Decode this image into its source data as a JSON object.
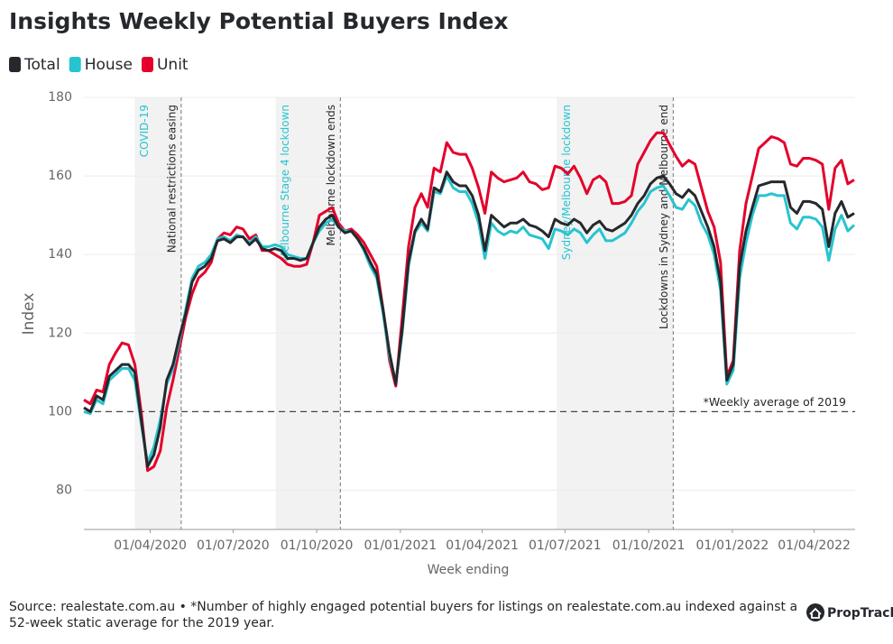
{
  "chart_data": {
    "type": "line",
    "title": "Insights Weekly Potential Buyers Index",
    "y_label": "Index",
    "x_label": "Week ending",
    "source": [
      "Source: realestate.com.au • *Number of highly engaged potential buyers for listings on realestate.com.au indexed against a",
      "52-week static average for the 2019 year."
    ],
    "brand": "PropTrack",
    "grid": true,
    "xlim": [
      "2020-01-19",
      "2022-05-16"
    ],
    "ylim": [
      70,
      180
    ],
    "yticks": [
      80,
      100,
      120,
      140,
      160,
      180
    ],
    "xticks": [
      {
        "value": "2020-04-01",
        "label": "01/04/2020"
      },
      {
        "value": "2020-07-01",
        "label": "01/07/2020"
      },
      {
        "value": "2020-10-01",
        "label": "01/10/2020"
      },
      {
        "value": "2021-01-01",
        "label": "01/01/2021"
      },
      {
        "value": "2021-04-01",
        "label": "01/04/2021"
      },
      {
        "value": "2021-07-01",
        "label": "01/07/2021"
      },
      {
        "value": "2021-10-01",
        "label": "01/10/2021"
      },
      {
        "value": "2022-01-01",
        "label": "01/01/2022"
      },
      {
        "value": "2022-04-01",
        "label": "01/04/2022"
      }
    ],
    "reference_line": {
      "value": 100,
      "label": "*Weekly average of 2019"
    },
    "shaded_periods": [
      {
        "start": "2020-03-15",
        "end": "2020-05-05",
        "label": "COVID-19"
      },
      {
        "start": "2020-08-17",
        "end": "2020-10-27",
        "label": "Melbourne Stage 4 lockdown"
      },
      {
        "start": "2021-06-22",
        "end": "2021-10-28",
        "label": "Sydney/Melbourne lockdown"
      }
    ],
    "markers": [
      {
        "x": "2020-05-05",
        "label": "National restrictions easing"
      },
      {
        "x": "2020-10-27",
        "label": "Melbourne lockdown ends"
      },
      {
        "x": "2021-10-28",
        "label": "Lockdowns in Sydney and Melbourne end"
      }
    ],
    "x": [
      "2020-01-19",
      "2020-01-26",
      "2020-02-02",
      "2020-02-09",
      "2020-02-16",
      "2020-02-23",
      "2020-03-01",
      "2020-03-08",
      "2020-03-15",
      "2020-03-22",
      "2020-03-29",
      "2020-04-05",
      "2020-04-12",
      "2020-04-19",
      "2020-04-26",
      "2020-05-03",
      "2020-05-10",
      "2020-05-17",
      "2020-05-24",
      "2020-05-31",
      "2020-06-07",
      "2020-06-14",
      "2020-06-21",
      "2020-06-28",
      "2020-07-05",
      "2020-07-12",
      "2020-07-19",
      "2020-07-26",
      "2020-08-02",
      "2020-08-09",
      "2020-08-16",
      "2020-08-23",
      "2020-08-30",
      "2020-09-06",
      "2020-09-13",
      "2020-09-20",
      "2020-09-27",
      "2020-10-04",
      "2020-10-11",
      "2020-10-18",
      "2020-10-25",
      "2020-11-01",
      "2020-11-08",
      "2020-11-15",
      "2020-11-22",
      "2020-11-29",
      "2020-12-06",
      "2020-12-13",
      "2020-12-20",
      "2020-12-27",
      "2021-01-03",
      "2021-01-10",
      "2021-01-17",
      "2021-01-24",
      "2021-01-31",
      "2021-02-07",
      "2021-02-14",
      "2021-02-21",
      "2021-02-28",
      "2021-03-07",
      "2021-03-14",
      "2021-03-21",
      "2021-03-28",
      "2021-04-04",
      "2021-04-11",
      "2021-04-18",
      "2021-04-25",
      "2021-05-02",
      "2021-05-09",
      "2021-05-16",
      "2021-05-23",
      "2021-05-30",
      "2021-06-06",
      "2021-06-13",
      "2021-06-20",
      "2021-06-27",
      "2021-07-04",
      "2021-07-11",
      "2021-07-18",
      "2021-07-25",
      "2021-08-01",
      "2021-08-08",
      "2021-08-15",
      "2021-08-22",
      "2021-08-29",
      "2021-09-05",
      "2021-09-12",
      "2021-09-19",
      "2021-09-26",
      "2021-10-03",
      "2021-10-10",
      "2021-10-17",
      "2021-10-24",
      "2021-10-31",
      "2021-11-07",
      "2021-11-14",
      "2021-11-21",
      "2021-11-28",
      "2021-12-05",
      "2021-12-12",
      "2021-12-19",
      "2021-12-26",
      "2022-01-02",
      "2022-01-09",
      "2022-01-16",
      "2022-01-23",
      "2022-01-30",
      "2022-02-06",
      "2022-02-13",
      "2022-02-20",
      "2022-02-27",
      "2022-03-06",
      "2022-03-13",
      "2022-03-20",
      "2022-03-27",
      "2022-04-03",
      "2022-04-10",
      "2022-04-17",
      "2022-04-24",
      "2022-05-01",
      "2022-05-08",
      "2022-05-15"
    ],
    "series": [
      {
        "name": "Total",
        "color": "#25282d",
        "values": [
          101,
          100,
          104,
          103,
          109,
          110.5,
          112,
          112,
          110,
          98,
          86,
          89,
          96,
          108,
          112,
          119,
          125,
          133,
          136,
          137,
          139,
          143.5,
          144,
          143,
          144.5,
          144.5,
          142.5,
          144,
          141.5,
          141,
          141.5,
          141,
          139,
          139,
          138.5,
          139,
          143,
          147,
          149,
          150,
          147,
          145.5,
          146,
          144,
          141.5,
          138,
          135,
          126,
          115,
          107,
          121,
          138,
          146,
          149,
          146.5,
          157,
          156,
          161,
          158.5,
          157.5,
          157.5,
          155,
          150,
          141,
          150,
          148.5,
          147,
          148,
          148,
          149,
          147.5,
          147,
          146,
          144.5,
          149,
          148,
          147.5,
          149,
          148,
          145.5,
          147.5,
          148.5,
          146.5,
          146,
          147,
          148,
          150,
          153,
          155,
          158,
          159.5,
          160,
          158,
          155.5,
          154.5,
          156.5,
          155,
          151,
          147,
          142,
          133,
          108,
          112,
          137,
          146,
          152,
          157.5,
          158,
          158.5,
          158.5,
          158.5,
          152,
          150.5,
          153.5,
          153.5,
          153,
          151.5,
          142,
          150.5,
          153.5,
          149.5,
          150.5
        ]
      },
      {
        "name": "House",
        "color": "#27c4cf",
        "values": [
          100,
          99.5,
          103,
          102,
          108,
          109.5,
          111,
          111,
          108,
          97,
          87,
          91,
          98,
          107,
          111,
          118,
          126,
          134,
          137,
          138,
          140,
          144,
          144.5,
          143.5,
          145,
          144.5,
          143,
          144.5,
          142,
          142,
          142.5,
          142,
          140,
          139.5,
          139,
          139,
          143,
          146,
          148,
          149,
          147,
          146,
          146,
          144,
          141,
          137,
          134,
          125,
          114,
          107.5,
          120,
          137,
          145.5,
          148,
          146,
          156,
          155.5,
          160,
          157,
          156,
          156,
          153,
          148,
          139,
          148,
          146,
          145,
          146,
          145.5,
          147,
          145,
          144.5,
          144,
          141.5,
          146.5,
          146,
          145,
          146.5,
          145.5,
          143,
          145,
          146.5,
          143.5,
          143.5,
          144.5,
          145.5,
          148,
          151,
          153,
          156,
          157,
          157.5,
          155,
          152,
          151.5,
          154,
          152.5,
          148,
          145,
          140,
          131,
          107,
          110.5,
          134,
          143,
          150,
          155,
          155,
          155.5,
          155,
          155,
          148,
          146.5,
          149.5,
          149.5,
          149,
          147,
          138.5,
          146.5,
          150,
          146,
          147.5
        ]
      },
      {
        "name": "Unit",
        "color": "#e4002b",
        "values": [
          103,
          102,
          105.5,
          105,
          112,
          115,
          117.5,
          117,
          112,
          100,
          85,
          86,
          90,
          101,
          108,
          116,
          124,
          130,
          134,
          135.5,
          138,
          144,
          145.5,
          145,
          147,
          146.5,
          144,
          145,
          141,
          141,
          140,
          139,
          137.5,
          137,
          137,
          137.5,
          143,
          150,
          151,
          152,
          148,
          146,
          146.5,
          145,
          143,
          140,
          137,
          126,
          113,
          106.5,
          124,
          142,
          152,
          155.5,
          152,
          162,
          161,
          168.5,
          166,
          165.5,
          165.5,
          162,
          157,
          150.5,
          161,
          159.5,
          158.5,
          159,
          159.5,
          161,
          158.5,
          158,
          156.5,
          157,
          162.5,
          162,
          160.5,
          162.5,
          159.5,
          155.5,
          159,
          160,
          158.5,
          153,
          153,
          153.5,
          155,
          163,
          166,
          169,
          171,
          171,
          168,
          165,
          162.5,
          164,
          163,
          157,
          151,
          147,
          138,
          109,
          113,
          141,
          153,
          160,
          167,
          168.5,
          170,
          169.5,
          168.5,
          163,
          162.5,
          164.5,
          164.5,
          164,
          163,
          151.5,
          162,
          164,
          158,
          159
        ]
      }
    ]
  }
}
